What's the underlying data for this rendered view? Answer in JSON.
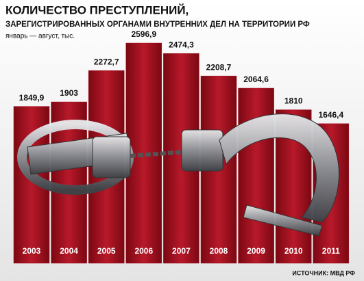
{
  "chart_data": {
    "type": "bar",
    "title": "КОЛИЧЕСТВО ПРЕСТУПЛЕНИЙ,",
    "subtitle": "ЗАРЕГИСТРИРОВАННЫХ ОРГАНАМИ ВНУТРЕННИХ ДЕЛ НА ТЕРРИТОРИИ РФ",
    "note": "январь — август, тыс.",
    "source": "ИСТОЧНИК: МВД РФ",
    "categories": [
      "2003",
      "2004",
      "2005",
      "2006",
      "2007",
      "2008",
      "2009",
      "2010",
      "2011"
    ],
    "values": [
      1849.9,
      1903,
      2272.7,
      2596.9,
      2474.3,
      2208.7,
      2064.6,
      1810,
      1646.4
    ],
    "value_labels": [
      "1849,9",
      "1903",
      "2272,7",
      "2596,9",
      "2474,3",
      "2208,7",
      "2064,6",
      "1810",
      "1646,4"
    ],
    "color": "#a3111f"
  }
}
